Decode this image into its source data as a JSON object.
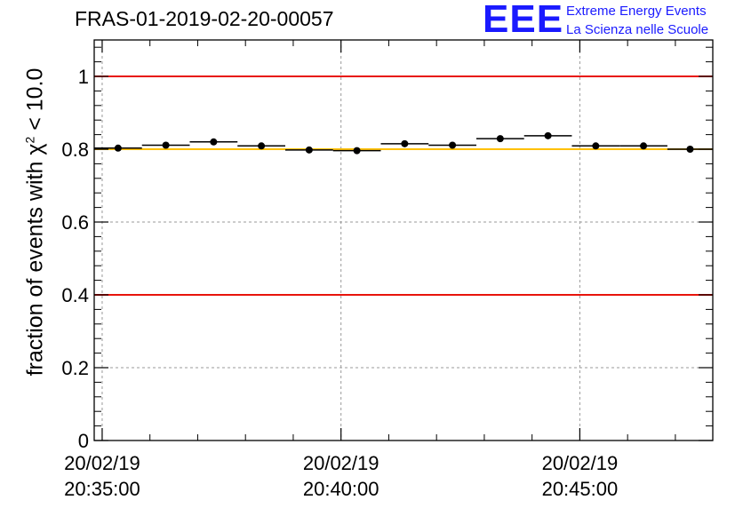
{
  "title": "FRAS-01-2019-02-20-00057",
  "logo": {
    "mark": "EEE",
    "line1": "Extreme Energy Events",
    "line2": "La Scienza nelle Scuole"
  },
  "chart_data": {
    "type": "scatter",
    "title": "FRAS-01-2019-02-20-00057",
    "xlabel": "",
    "ylabel": {
      "prefix": "fraction of events with ",
      "symbol": "χ",
      "power": "2",
      "suffix": " < 10.0"
    },
    "ylim": [
      0,
      1.1
    ],
    "yticks": [
      0,
      0.2,
      0.4,
      0.6,
      0.8,
      1
    ],
    "ytick_labels": [
      "0",
      "0.2",
      "0.4",
      "0.6",
      "0.8",
      "1"
    ],
    "xlim": [
      "20:34:50",
      "20:47:47"
    ],
    "xticks": [
      {
        "time": "20:35:00",
        "date_label": "20/02/19",
        "time_label": "20:35:00"
      },
      {
        "time": "20:40:00",
        "date_label": "20/02/19",
        "time_label": "20:40:00"
      },
      {
        "time": "20:45:00",
        "date_label": "20/02/19",
        "time_label": "20:45:00"
      }
    ],
    "grid": true,
    "reference_lines": [
      {
        "y": 1.0,
        "color": "#e8140c"
      },
      {
        "y": 0.8,
        "color": "#ffc000"
      },
      {
        "y": 0.4,
        "color": "#e8140c"
      }
    ],
    "series": [
      {
        "marker_color": "#000000",
        "points": [
          {
            "x_start": "20:34:50",
            "x_end": "20:35:50",
            "y": 0.803
          },
          {
            "x_start": "20:35:50",
            "x_end": "20:36:50",
            "y": 0.811
          },
          {
            "x_start": "20:36:50",
            "x_end": "20:37:50",
            "y": 0.82
          },
          {
            "x_start": "20:37:50",
            "x_end": "20:38:50",
            "y": 0.809
          },
          {
            "x_start": "20:38:50",
            "x_end": "20:39:50",
            "y": 0.798
          },
          {
            "x_start": "20:39:50",
            "x_end": "20:40:50",
            "y": 0.796
          },
          {
            "x_start": "20:40:50",
            "x_end": "20:41:50",
            "y": 0.815
          },
          {
            "x_start": "20:41:50",
            "x_end": "20:42:50",
            "y": 0.811
          },
          {
            "x_start": "20:42:50",
            "x_end": "20:43:50",
            "y": 0.829
          },
          {
            "x_start": "20:43:50",
            "x_end": "20:44:50",
            "y": 0.837
          },
          {
            "x_start": "20:44:50",
            "x_end": "20:45:50",
            "y": 0.809
          },
          {
            "x_start": "20:45:50",
            "x_end": "20:46:50",
            "y": 0.809
          },
          {
            "x_start": "20:46:50",
            "x_end": "20:47:47",
            "y": 0.8
          }
        ]
      }
    ]
  }
}
